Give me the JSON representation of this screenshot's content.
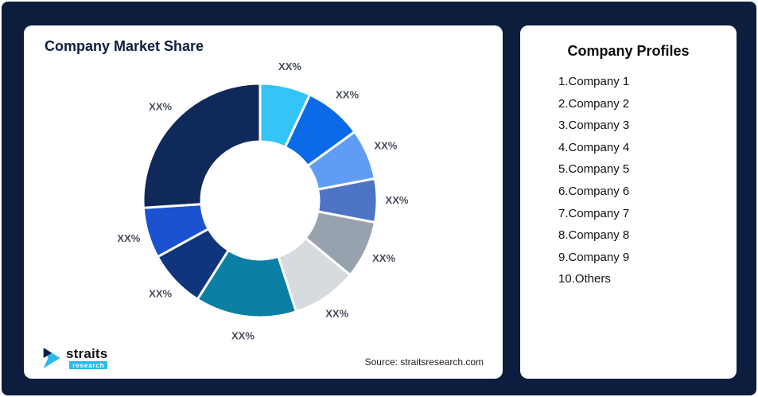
{
  "frame": {
    "background": "#0D1D3D",
    "card_background": "#FFFFFF"
  },
  "market_share": {
    "title": "Company Market Share",
    "source": "Source: straitsresearch.com"
  },
  "logo": {
    "brand": "straits",
    "sub": "research"
  },
  "profiles": {
    "title": "Company Profiles",
    "items": [
      "1.Company 1",
      "2.Company 2",
      "3.Company 3",
      "4.Company 4",
      "5.Company 5",
      "6.Company 6",
      "7.Company 7",
      "8.Company 8",
      "9.Company 9",
      "10.Others"
    ]
  },
  "chart_data": {
    "type": "pie",
    "variant": "donut",
    "title": "Company Market Share",
    "start_angle_deg": 0,
    "inner_radius_ratio": 0.5,
    "legend": "none",
    "value_note": "all slice labels shown as XX% placeholders; values are angular-size estimates in percent",
    "segments": [
      {
        "name": "Company 1",
        "label": "XX%",
        "value": 7,
        "color": "#33C5F8"
      },
      {
        "name": "Company 2",
        "label": "XX%",
        "value": 8,
        "color": "#0A6AE8"
      },
      {
        "name": "Company 3",
        "label": "XX%",
        "value": 7,
        "color": "#5F9DF5"
      },
      {
        "name": "Company 4",
        "label": "XX%",
        "value": 6,
        "color": "#4D74C4"
      },
      {
        "name": "Company 5",
        "label": "XX%",
        "value": 8,
        "color": "#98A1AE"
      },
      {
        "name": "Company 6",
        "label": "XX%",
        "value": 9,
        "color": "#D7DBDF"
      },
      {
        "name": "Company 7",
        "label": "XX%",
        "value": 14,
        "color": "#0C7FA4"
      },
      {
        "name": "Company 8",
        "label": "XX%",
        "value": 8,
        "color": "#10357C"
      },
      {
        "name": "Company 9",
        "label": "XX%",
        "value": 7,
        "color": "#1B52CF"
      },
      {
        "name": "Others",
        "label": "XX%",
        "value": 26,
        "color": "#10295B"
      }
    ]
  }
}
